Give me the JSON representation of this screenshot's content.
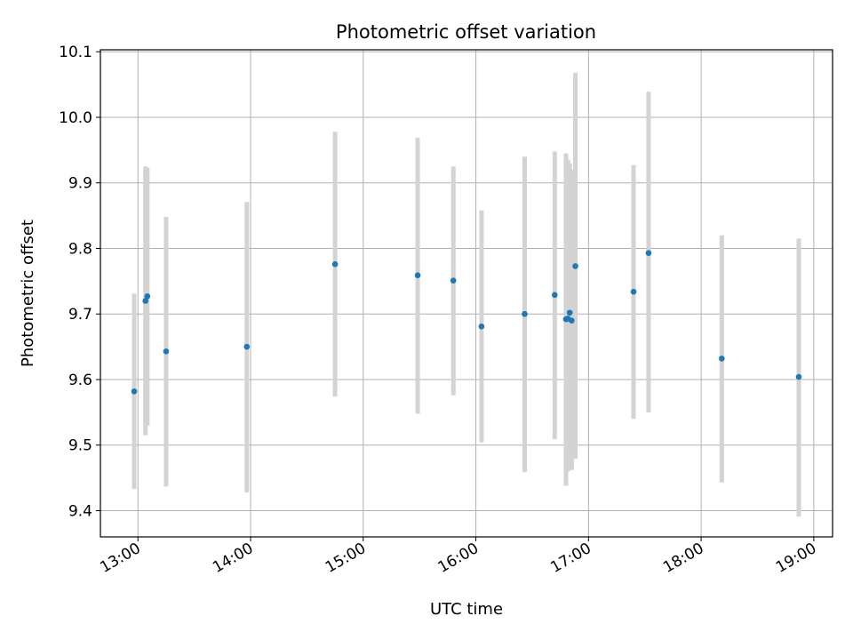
{
  "chart_data": {
    "type": "scatter",
    "title": "Photometric offset variation",
    "xlabel": "UTC time",
    "ylabel": "Photometric offset",
    "x_tick_labels": [
      "13:00",
      "14:00",
      "15:00",
      "16:00",
      "17:00",
      "18:00",
      "19:00"
    ],
    "y_tick_labels": [
      "9.4",
      "9.5",
      "9.6",
      "9.7",
      "9.8",
      "9.9",
      "10.0",
      "10.1"
    ],
    "xlim": [
      "12:40",
      "19:10"
    ],
    "ylim": [
      9.36,
      10.103
    ],
    "grid": true,
    "colors": {
      "point": "#1f77b4",
      "errorbar": "#d3d3d3",
      "grid": "#b0b0b0"
    },
    "points": [
      {
        "x": "12:58",
        "y": 9.582,
        "y_low": 9.433,
        "y_high": 9.731
      },
      {
        "x": "13:04",
        "y": 9.72,
        "y_low": 9.515,
        "y_high": 9.925
      },
      {
        "x": "13:05",
        "y": 9.727,
        "y_low": 9.53,
        "y_high": 9.923
      },
      {
        "x": "13:15",
        "y": 9.643,
        "y_low": 9.437,
        "y_high": 9.848
      },
      {
        "x": "13:58",
        "y": 9.65,
        "y_low": 9.428,
        "y_high": 9.871
      },
      {
        "x": "14:45",
        "y": 9.776,
        "y_low": 9.574,
        "y_high": 9.978
      },
      {
        "x": "15:29",
        "y": 9.759,
        "y_low": 9.548,
        "y_high": 9.969
      },
      {
        "x": "15:48",
        "y": 9.751,
        "y_low": 9.576,
        "y_high": 9.925
      },
      {
        "x": "16:03",
        "y": 9.681,
        "y_low": 9.504,
        "y_high": 9.858
      },
      {
        "x": "16:26",
        "y": 9.7,
        "y_low": 9.459,
        "y_high": 9.94
      },
      {
        "x": "16:42",
        "y": 9.729,
        "y_low": 9.509,
        "y_high": 9.948
      },
      {
        "x": "16:48",
        "y": 9.692,
        "y_low": 9.438,
        "y_high": 9.945
      },
      {
        "x": "16:49",
        "y": 9.693,
        "y_low": 9.46,
        "y_high": 9.935
      },
      {
        "x": "16:50",
        "y": 9.702,
        "y_low": 9.475,
        "y_high": 9.93
      },
      {
        "x": "16:51",
        "y": 9.69,
        "y_low": 9.462,
        "y_high": 9.92
      },
      {
        "x": "16:53",
        "y": 9.773,
        "y_low": 9.479,
        "y_high": 10.068
      },
      {
        "x": "17:24",
        "y": 9.734,
        "y_low": 9.54,
        "y_high": 9.927
      },
      {
        "x": "17:32",
        "y": 9.793,
        "y_low": 9.55,
        "y_high": 10.039
      },
      {
        "x": "18:11",
        "y": 9.632,
        "y_low": 9.443,
        "y_high": 9.82
      },
      {
        "x": "18:52",
        "y": 9.604,
        "y_low": 9.391,
        "y_high": 9.815
      }
    ]
  }
}
